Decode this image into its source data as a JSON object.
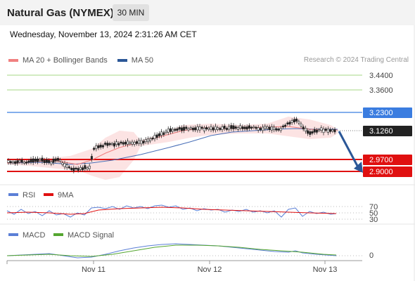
{
  "header": {
    "title": "Natural Gas (NYMEX)",
    "timeframe": "30 MIN"
  },
  "datetime": "Wednesday, November 13, 2024 2:31:26 AM CET",
  "legend_main": [
    {
      "label": "MA 20 + Bollinger Bands",
      "color": "#f08080"
    },
    {
      "label": "MA 50",
      "color": "#2b5797"
    }
  ],
  "credit": "Research © 2024 Trading Central",
  "levels": [
    {
      "value": "3.4400",
      "color": "#a6d785",
      "style": "green"
    },
    {
      "value": "3.3600",
      "color": "#a6d785",
      "style": "green"
    },
    {
      "value": "3.2300",
      "color": "#3b7de0",
      "style": "blue"
    },
    {
      "value": "3.1260",
      "color": "#222222",
      "style": "price"
    },
    {
      "value": "2.9700",
      "color": "#e01010",
      "style": "red"
    },
    {
      "value": "2.9000",
      "color": "#e01010",
      "style": "red"
    }
  ],
  "rsi": {
    "legend": [
      {
        "label": "RSI",
        "color": "#5b7fd6"
      },
      {
        "label": "9MA",
        "color": "#e01010"
      }
    ],
    "levels": [
      "70",
      "50",
      "30"
    ]
  },
  "macd": {
    "legend": [
      {
        "label": "MACD",
        "color": "#5b7fd6"
      },
      {
        "label": "MACD Signal",
        "color": "#55a630"
      }
    ],
    "zero_label": "0"
  },
  "x_axis": [
    "Nov 11",
    "Nov 12",
    "Nov 13"
  ]
}
